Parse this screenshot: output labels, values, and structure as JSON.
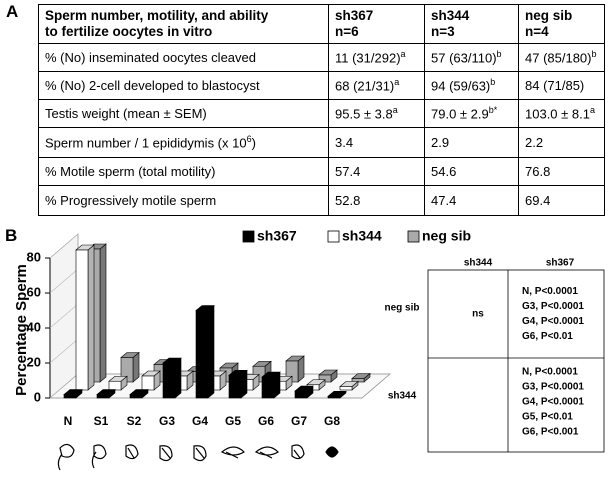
{
  "panel_labels": [
    "A",
    "B"
  ],
  "table": {
    "header": [
      [
        "Sperm number, motility, and ability",
        "to fertilize oocytes in vitro"
      ],
      [
        "sh367",
        "n=6"
      ],
      [
        "sh344",
        "n=3"
      ],
      [
        "neg sib",
        "n=4"
      ]
    ],
    "rows": [
      [
        "% (No) inseminated oocytes cleaved",
        {
          "text": "11 (31/292)",
          "sup": "a"
        },
        {
          "text": "57 (63/110)",
          "sup": "b"
        },
        {
          "text": "47 (85/180)",
          "sup": "b"
        }
      ],
      [
        "% (No) 2-cell developed to blastocyst",
        {
          "text": "68 (21/31)",
          "sup": "a"
        },
        {
          "text": "94 (59/63)",
          "sup": "b"
        },
        "84 (71/85)"
      ],
      [
        "Testis weight (mean ± SEM)",
        {
          "text": "95.5 ± 3.8",
          "sup": "a"
        },
        {
          "text": "79.0 ± 2.9",
          "sup": "b*"
        },
        {
          "text": "103.0 ± 8.1",
          "sup": "a"
        }
      ],
      [
        {
          "text": "Sperm number / 1 epididymis (x 10",
          "sup": "6",
          "after": ")"
        },
        "3.4",
        "2.9",
        "2.2"
      ],
      [
        "% Motile sperm (total motility)",
        "57.4",
        "54.6",
        "76.8"
      ],
      [
        "% Progressively motile sperm",
        "52.8",
        "47.4",
        "69.4"
      ]
    ]
  },
  "chart_data": {
    "type": "bar",
    "y_label": "Percentage Sperm",
    "categories": [
      "N",
      "S1",
      "S2",
      "G3",
      "G4",
      "G5",
      "G6",
      "G7",
      "G8"
    ],
    "series": [
      {
        "name": "sh367",
        "color": "#000000",
        "values": [
          2,
          2,
          2,
          20,
          50,
          13,
          12,
          4,
          1
        ]
      },
      {
        "name": "sh344",
        "color": "#ffffff",
        "values": [
          80,
          5,
          8,
          8,
          8,
          6,
          5,
          3,
          2
        ]
      },
      {
        "name": "neg sib",
        "color": "#aaaaaa",
        "values": [
          76,
          14,
          10,
          6,
          8,
          9,
          12,
          4,
          2
        ]
      }
    ],
    "ylim": [
      0,
      80
    ],
    "yticks": [
      0,
      20,
      40,
      60,
      80
    ]
  },
  "stats_table": {
    "columns": [
      "sh344",
      "sh367"
    ],
    "rows": [
      {
        "label": "neg sib",
        "cells": [
          [
            "ns"
          ],
          [
            "N,   P<0.0001",
            "G3,  P<0.0001",
            "G4,  P<0.0001",
            "G6,  P<0.01"
          ]
        ]
      },
      {
        "label": "sh344",
        "cells": [
          [],
          [
            "N,     P<0.0001",
            "G3,  P<0.0001",
            "G4,  P<0.0001",
            "G5,  P<0.01",
            "G6,  P<0.001"
          ]
        ]
      }
    ]
  }
}
